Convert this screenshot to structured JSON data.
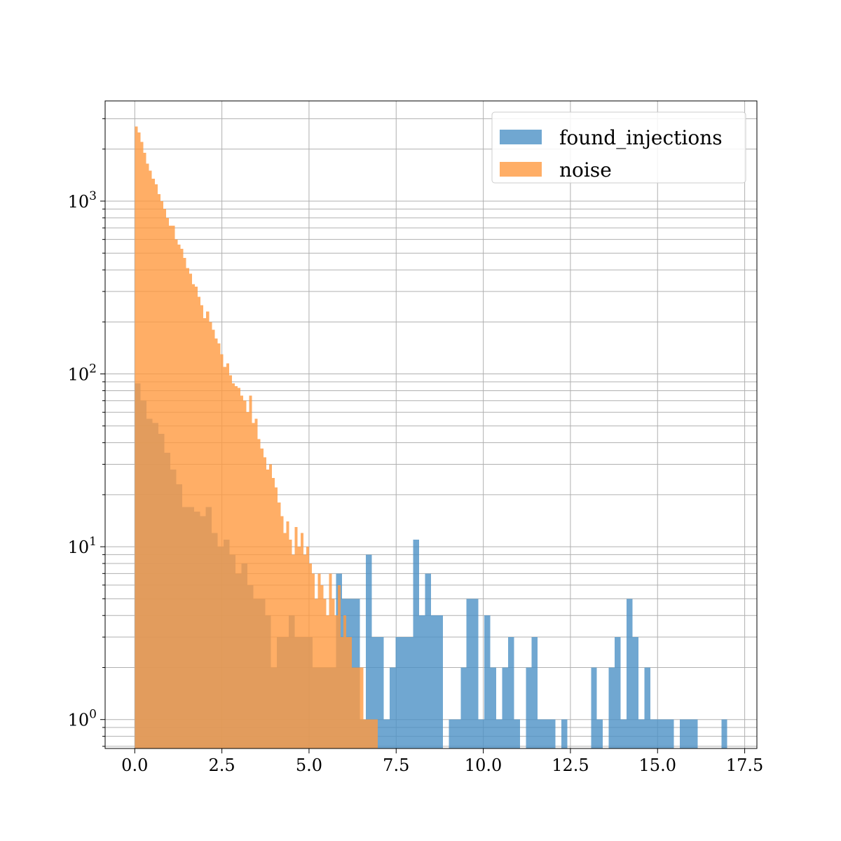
{
  "chart_data": {
    "type": "histogram",
    "scale": {
      "y": "log"
    },
    "xlim": [
      -0.85,
      17.85
    ],
    "ylim": [
      0.68,
      3800
    ],
    "grid": true,
    "legend": {
      "position": "top-right",
      "entries": [
        "found_injections",
        "noise"
      ]
    },
    "x_ticks": [
      "0.0",
      "2.5",
      "5.0",
      "7.5",
      "10.0",
      "12.5",
      "15.0",
      "17.5"
    ],
    "x_tick_values": [
      0,
      2.5,
      5,
      7.5,
      10,
      12.5,
      15,
      17.5
    ],
    "y_ticks": [
      {
        "value": 1,
        "base": "10",
        "exp": "0"
      },
      {
        "value": 10,
        "base": "10",
        "exp": "1"
      },
      {
        "value": 100,
        "base": "10",
        "exp": "2"
      },
      {
        "value": 1000,
        "base": "10",
        "exp": "3"
      }
    ],
    "series": [
      {
        "name": "found_injections",
        "color": "#4c91c5",
        "bin_width": 0.17,
        "bins": [
          [
            0.0,
            0.17,
            88
          ],
          [
            0.17,
            0.34,
            70
          ],
          [
            0.34,
            0.51,
            55
          ],
          [
            0.51,
            0.68,
            52
          ],
          [
            0.68,
            0.85,
            45
          ],
          [
            0.85,
            1.02,
            35
          ],
          [
            1.02,
            1.19,
            28
          ],
          [
            1.19,
            1.36,
            23
          ],
          [
            1.36,
            1.53,
            17
          ],
          [
            1.53,
            1.7,
            17
          ],
          [
            1.7,
            1.87,
            16
          ],
          [
            1.87,
            2.04,
            15
          ],
          [
            2.04,
            2.21,
            17
          ],
          [
            2.21,
            2.38,
            12
          ],
          [
            2.38,
            2.55,
            10
          ],
          [
            2.55,
            2.72,
            11
          ],
          [
            2.72,
            2.89,
            9
          ],
          [
            2.89,
            3.06,
            7
          ],
          [
            3.06,
            3.23,
            8
          ],
          [
            3.23,
            3.4,
            6
          ],
          [
            3.4,
            3.57,
            5
          ],
          [
            3.57,
            3.74,
            5
          ],
          [
            3.74,
            3.91,
            4
          ],
          [
            3.91,
            4.08,
            2
          ],
          [
            4.08,
            4.25,
            3
          ],
          [
            4.25,
            4.42,
            3
          ],
          [
            4.42,
            4.59,
            4
          ],
          [
            4.59,
            4.76,
            3
          ],
          [
            4.76,
            4.93,
            3
          ],
          [
            4.93,
            5.1,
            3
          ],
          [
            5.1,
            5.27,
            2
          ],
          [
            5.27,
            5.44,
            2
          ],
          [
            5.44,
            5.61,
            2
          ],
          [
            5.61,
            5.78,
            2
          ],
          [
            5.78,
            5.95,
            7
          ],
          [
            5.95,
            6.12,
            5
          ],
          [
            6.12,
            6.29,
            5
          ],
          [
            6.29,
            6.46,
            5
          ],
          [
            6.46,
            6.63,
            1
          ],
          [
            6.63,
            6.8,
            9
          ],
          [
            6.8,
            6.97,
            3
          ],
          [
            6.97,
            7.14,
            3
          ],
          [
            7.14,
            7.31,
            1
          ],
          [
            7.31,
            7.48,
            2
          ],
          [
            7.48,
            7.65,
            3
          ],
          [
            7.65,
            7.82,
            3
          ],
          [
            7.82,
            7.99,
            3
          ],
          [
            7.99,
            8.16,
            11
          ],
          [
            8.16,
            8.33,
            4
          ],
          [
            8.33,
            8.5,
            7
          ],
          [
            8.5,
            8.67,
            4
          ],
          [
            8.67,
            8.84,
            4
          ],
          [
            9.01,
            9.18,
            1
          ],
          [
            9.18,
            9.35,
            1
          ],
          [
            9.35,
            9.52,
            2
          ],
          [
            9.52,
            9.69,
            5
          ],
          [
            9.69,
            9.86,
            5
          ],
          [
            9.86,
            10.03,
            1
          ],
          [
            10.03,
            10.2,
            4
          ],
          [
            10.2,
            10.37,
            2
          ],
          [
            10.37,
            10.54,
            1
          ],
          [
            10.54,
            10.71,
            2
          ],
          [
            10.71,
            10.88,
            3
          ],
          [
            10.88,
            11.05,
            1
          ],
          [
            11.22,
            11.39,
            2
          ],
          [
            11.39,
            11.56,
            3
          ],
          [
            11.56,
            11.73,
            1
          ],
          [
            11.73,
            11.9,
            1
          ],
          [
            11.9,
            12.07,
            1
          ],
          [
            12.24,
            12.41,
            1
          ],
          [
            13.09,
            13.26,
            2
          ],
          [
            13.26,
            13.43,
            1
          ],
          [
            13.6,
            13.77,
            2
          ],
          [
            13.77,
            13.94,
            3
          ],
          [
            13.94,
            14.11,
            1
          ],
          [
            14.11,
            14.28,
            5
          ],
          [
            14.28,
            14.45,
            3
          ],
          [
            14.45,
            14.62,
            1
          ],
          [
            14.62,
            14.79,
            2
          ],
          [
            14.79,
            14.96,
            1
          ],
          [
            14.96,
            15.13,
            1
          ],
          [
            15.13,
            15.3,
            1
          ],
          [
            15.3,
            15.47,
            1
          ],
          [
            15.64,
            15.81,
            1
          ],
          [
            15.81,
            15.98,
            1
          ],
          [
            15.98,
            16.15,
            1
          ],
          [
            16.83,
            17.0,
            1
          ]
        ]
      },
      {
        "name": "noise",
        "color": "#ff9a40",
        "bin_width": 0.082,
        "bins": [
          [
            0.0,
            0.082,
            2700
          ],
          [
            0.082,
            0.164,
            2500
          ],
          [
            0.164,
            0.246,
            2200
          ],
          [
            0.246,
            0.328,
            1900
          ],
          [
            0.328,
            0.41,
            1650
          ],
          [
            0.41,
            0.492,
            1500
          ],
          [
            0.492,
            0.574,
            1350
          ],
          [
            0.574,
            0.656,
            1250
          ],
          [
            0.656,
            0.738,
            1100
          ],
          [
            0.738,
            0.82,
            1000
          ],
          [
            0.82,
            0.902,
            900
          ],
          [
            0.902,
            0.984,
            800
          ],
          [
            0.984,
            1.066,
            720
          ],
          [
            1.066,
            1.148,
            720
          ],
          [
            1.148,
            1.23,
            600
          ],
          [
            1.23,
            1.312,
            560
          ],
          [
            1.312,
            1.394,
            530
          ],
          [
            1.394,
            1.476,
            470
          ],
          [
            1.476,
            1.558,
            410
          ],
          [
            1.558,
            1.64,
            380
          ],
          [
            1.64,
            1.722,
            330
          ],
          [
            1.722,
            1.804,
            320
          ],
          [
            1.804,
            1.886,
            280
          ],
          [
            1.886,
            1.968,
            250
          ],
          [
            1.968,
            2.05,
            210
          ],
          [
            2.05,
            2.132,
            230
          ],
          [
            2.132,
            2.214,
            200
          ],
          [
            2.214,
            2.296,
            180
          ],
          [
            2.296,
            2.378,
            160
          ],
          [
            2.378,
            2.46,
            150
          ],
          [
            2.46,
            2.542,
            130
          ],
          [
            2.542,
            2.624,
            110
          ],
          [
            2.624,
            2.706,
            115
          ],
          [
            2.706,
            2.788,
            98
          ],
          [
            2.788,
            2.87,
            88
          ],
          [
            2.87,
            2.952,
            85
          ],
          [
            2.952,
            3.034,
            83
          ],
          [
            3.034,
            3.116,
            75
          ],
          [
            3.116,
            3.198,
            70
          ],
          [
            3.198,
            3.28,
            60
          ],
          [
            3.28,
            3.362,
            75
          ],
          [
            3.362,
            3.444,
            52
          ],
          [
            3.444,
            3.526,
            55
          ],
          [
            3.526,
            3.608,
            42
          ],
          [
            3.608,
            3.69,
            37
          ],
          [
            3.69,
            3.772,
            33
          ],
          [
            3.772,
            3.854,
            28
          ],
          [
            3.854,
            3.936,
            30
          ],
          [
            3.936,
            4.018,
            25
          ],
          [
            4.018,
            4.1,
            22
          ],
          [
            4.1,
            4.182,
            18
          ],
          [
            4.182,
            4.264,
            15
          ],
          [
            4.264,
            4.346,
            12
          ],
          [
            4.346,
            4.428,
            14
          ],
          [
            4.428,
            4.51,
            11
          ],
          [
            4.51,
            4.592,
            9
          ],
          [
            4.592,
            4.674,
            13
          ],
          [
            4.674,
            4.756,
            10
          ],
          [
            4.756,
            4.838,
            12
          ],
          [
            4.838,
            4.92,
            9
          ],
          [
            4.92,
            5.002,
            10
          ],
          [
            5.002,
            5.084,
            8
          ],
          [
            5.084,
            5.166,
            7
          ],
          [
            5.166,
            5.248,
            5
          ],
          [
            5.248,
            5.33,
            7
          ],
          [
            5.33,
            5.412,
            6
          ],
          [
            5.412,
            5.494,
            5
          ],
          [
            5.494,
            5.576,
            4
          ],
          [
            5.576,
            5.658,
            7
          ],
          [
            5.658,
            5.74,
            5
          ],
          [
            5.74,
            5.822,
            4
          ],
          [
            5.822,
            5.904,
            6
          ],
          [
            5.904,
            5.986,
            3
          ],
          [
            5.986,
            6.068,
            4
          ],
          [
            6.068,
            6.15,
            3
          ],
          [
            6.15,
            6.232,
            3
          ],
          [
            6.232,
            6.314,
            2
          ],
          [
            6.314,
            6.396,
            2
          ],
          [
            6.396,
            6.478,
            2
          ],
          [
            6.478,
            6.56,
            2
          ],
          [
            6.56,
            6.642,
            1
          ],
          [
            6.642,
            6.724,
            1
          ],
          [
            6.724,
            6.806,
            1
          ],
          [
            6.806,
            6.888,
            1
          ],
          [
            6.888,
            6.97,
            1
          ]
        ]
      }
    ]
  }
}
